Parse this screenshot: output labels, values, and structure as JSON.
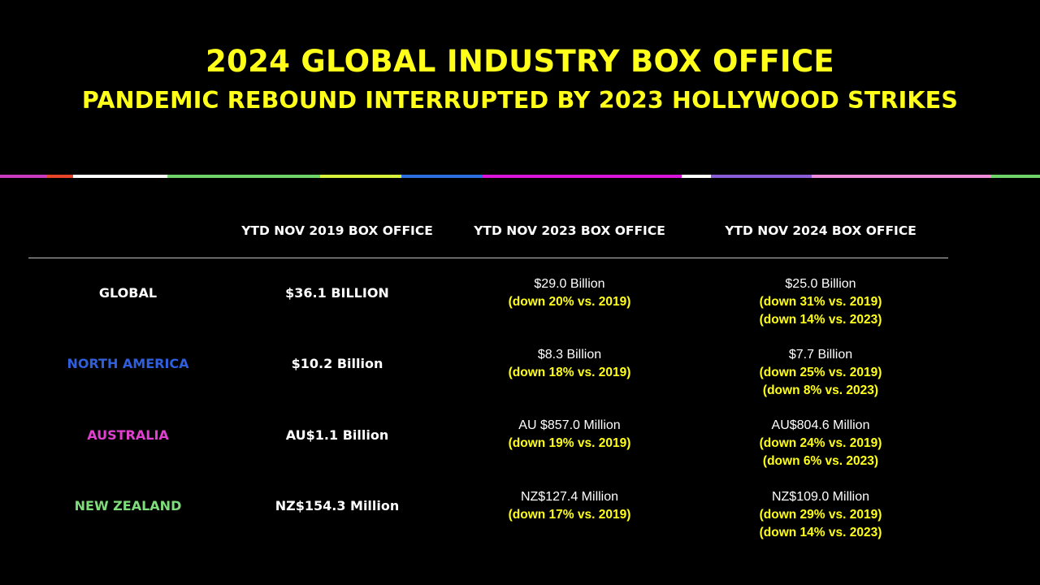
{
  "title": {
    "main": "2024 GLOBAL INDUSTRY BOX OFFICE",
    "sub": "PANDEMIC REBOUND INTERRUPTED BY 2023 HOLLYWOOD STRIKES"
  },
  "colors": {
    "title": "#ffff1a",
    "change_text": "#ffff1a",
    "rule": "#bfbfbf",
    "background": "#000000"
  },
  "color_bar": [
    "#c93bc0",
    "#e8462a",
    "#ffffff",
    "#6fd46a",
    "#d7f23c",
    "#2b6fe0",
    "#d916d9",
    "#ffffff",
    "#8a5cd6",
    "#f08ad9",
    "#6fd46a"
  ],
  "table": {
    "headers": [
      "YTD NOV 2019 BOX OFFICE",
      "YTD NOV 2023 BOX OFFICE",
      "YTD NOV 2024 BOX OFFICE"
    ],
    "rows": [
      {
        "region": "GLOBAL",
        "region_color": "#ffffff",
        "v2019": "$36.1 BILLION",
        "v2023": "$29.0 Billion",
        "v2023_change": "(down 20% vs. 2019)",
        "v2024": "$25.0 Billion",
        "v2024_change_2019": "(down 31% vs. 2019)",
        "v2024_change_2023": "(down 14% vs. 2023)"
      },
      {
        "region": "NORTH AMERICA",
        "region_color": "#2f5fdc",
        "v2019": "$10.2 Billion",
        "v2023": "$8.3 Billion",
        "v2023_change": "(down 18% vs. 2019)",
        "v2024": "$7.7 Billion",
        "v2024_change_2019": "(down 25% vs. 2019)",
        "v2024_change_2023": "(down 8% vs. 2023)"
      },
      {
        "region": "AUSTRALIA",
        "region_color": "#e040d0",
        "v2019": "AU$1.1 Billion",
        "v2023": "AU $857.0 Million",
        "v2023_change": "(down 19% vs. 2019)",
        "v2024": "AU$804.6 Million",
        "v2024_change_2019": "(down 24% vs. 2019)",
        "v2024_change_2023": "(down 6% vs. 2023)"
      },
      {
        "region": "NEW ZEALAND",
        "region_color": "#7fdc7a",
        "v2019": "NZ$154.3 Million",
        "v2023": "NZ$127.4 Million",
        "v2023_change": "(down 17% vs. 2019)",
        "v2024": "NZ$109.0 Million",
        "v2024_change_2019": "(down 29% vs. 2019)",
        "v2024_change_2023": "(down 14% vs. 2023)"
      }
    ]
  }
}
